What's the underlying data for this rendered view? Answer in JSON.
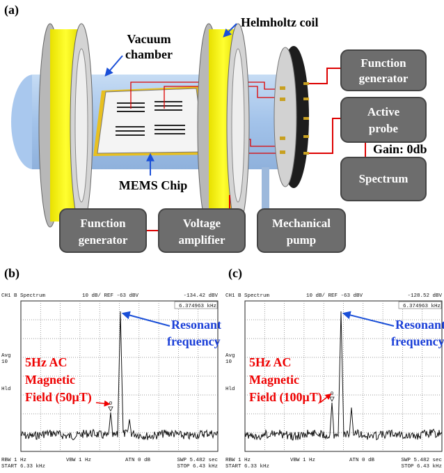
{
  "panel_a": {
    "label": "(a)",
    "helmholtz_coil": "Helmholtz coil",
    "vacuum_chamber": [
      "Vacuum",
      "chamber"
    ],
    "mems_chip": "MEMS Chip",
    "gain": "Gain: 0db",
    "boxes": {
      "function_generator_top": [
        "Function",
        "generator"
      ],
      "active_probe": [
        "Active",
        "probe"
      ],
      "spectrum": [
        "Spectrum"
      ],
      "function_generator_bottom": [
        "Function",
        "generator"
      ],
      "voltage_amplifier": [
        "Voltage",
        "amplifier"
      ],
      "mechanical_pump": [
        "Mechanical",
        "pump"
      ]
    }
  },
  "panel_b": {
    "label": "(b)",
    "screen": {
      "channel": "CH1 B  Spectrum",
      "scale": "10 dB/ REF -63 dBV",
      "marker_level": "-134.42 dBV",
      "marker_freq": "6.374963 kHz",
      "avg": "Avg",
      "avg_count": "10",
      "hold": "Hld",
      "rbw": "RBW  1 Hz",
      "vbw": "VBW 1 Hz",
      "atn": "ATN  0 dB",
      "swp": "SWP  5.482 sec",
      "start": "START  6.33 kHz",
      "stop": "STOP  6.43 kHz",
      "marker": "0"
    },
    "resonant": [
      "Resonant",
      "frequency"
    ],
    "field": [
      "5Hz AC",
      "Magnetic",
      "Field (50μT)"
    ]
  },
  "panel_c": {
    "label": "(c)",
    "screen": {
      "channel": "CH1 B  Spectrum",
      "scale": "10 dB/ REF -63 dBV",
      "marker_level": "-128.52 dBV",
      "marker_freq": "6.374963 kHz",
      "avg": "Avg",
      "avg_count": "10",
      "hold": "Hld",
      "rbw": "RBW  1 Hz",
      "vbw": "VBW 1 Hz",
      "atn": "ATN  0 dB",
      "swp": "SWP  5.482 sec",
      "start": "START  6.33 kHz",
      "stop": "STOP  6.43 kHz",
      "marker": "0"
    },
    "resonant": [
      "Resonant",
      "frequency"
    ],
    "field": [
      "5Hz AC",
      "Magnetic",
      "Field (100μT)"
    ]
  }
}
